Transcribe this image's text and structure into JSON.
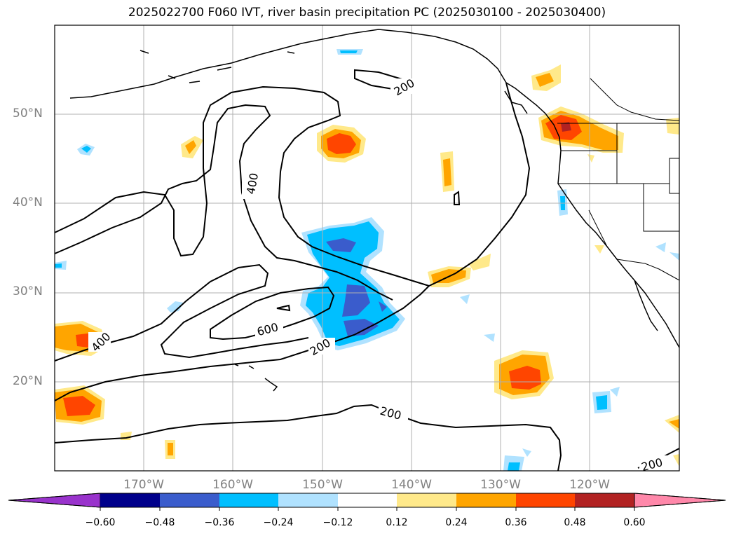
{
  "chart_data": {
    "type": "heatmap",
    "title": "2025022700 F060 IVT, river basin precipitation PC (2025030100 - 2025030400)",
    "lat_ticks": [
      "50°N",
      "40°N",
      "30°N",
      "20°N"
    ],
    "lat_values": [
      50,
      40,
      30,
      20
    ],
    "lon_ticks": [
      "170°W",
      "160°W",
      "150°W",
      "140°W",
      "130°W",
      "120°W"
    ],
    "lon_values": [
      -170,
      -160,
      -150,
      -140,
      -130,
      -120
    ],
    "extent": {
      "lon": [
        -180,
        -110
      ],
      "lat": [
        10,
        60
      ]
    },
    "grid": true,
    "contour_levels": [
      200,
      400,
      600
    ],
    "contour_labels": [
      "200",
      "400",
      "600",
      "400",
      "200",
      "200",
      "200"
    ],
    "colorbar": {
      "ticks": [
        "−0.60",
        "−0.48",
        "−0.36",
        "−0.24",
        "−0.12",
        "0.12",
        "0.24",
        "0.36",
        "0.48",
        "0.60"
      ],
      "tick_values": [
        -0.6,
        -0.48,
        -0.36,
        -0.24,
        -0.12,
        0.12,
        0.24,
        0.36,
        0.48,
        0.6
      ],
      "colors": [
        "#9933cc",
        "#00008b",
        "#3a5ccc",
        "#00bfff",
        "#b0e2ff",
        "#ffffff",
        "#ffe98a",
        "#ffa500",
        "#ff4500",
        "#b22222",
        "#ff88aa"
      ],
      "extend": "both"
    }
  }
}
